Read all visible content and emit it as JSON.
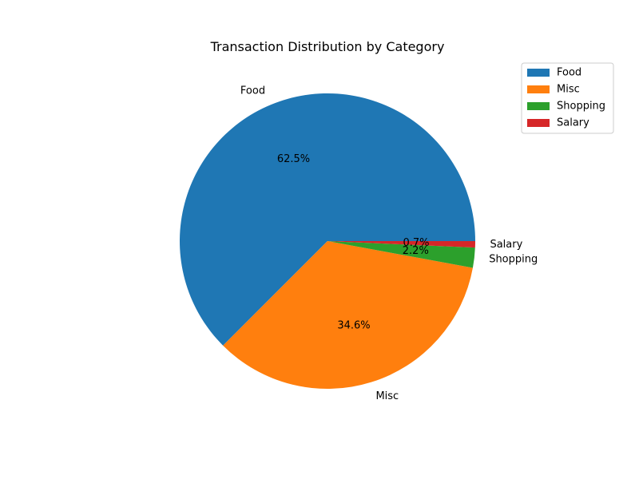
{
  "chart_data": {
    "type": "pie",
    "title": "Transaction Distribution by Category",
    "start_angle_deg": 0,
    "direction": "counterclockwise",
    "legend_position": "top-right",
    "slices": [
      {
        "label": "Food",
        "pct": 62.5,
        "pct_label": "62.5%",
        "color": "#1f77b4"
      },
      {
        "label": "Misc",
        "pct": 34.6,
        "pct_label": "34.6%",
        "color": "#ff7f0e"
      },
      {
        "label": "Shopping",
        "pct": 2.2,
        "pct_label": "2.2%",
        "color": "#2ca02c"
      },
      {
        "label": "Salary",
        "pct": 0.7,
        "pct_label": "0.7%",
        "color": "#d62728"
      }
    ]
  }
}
